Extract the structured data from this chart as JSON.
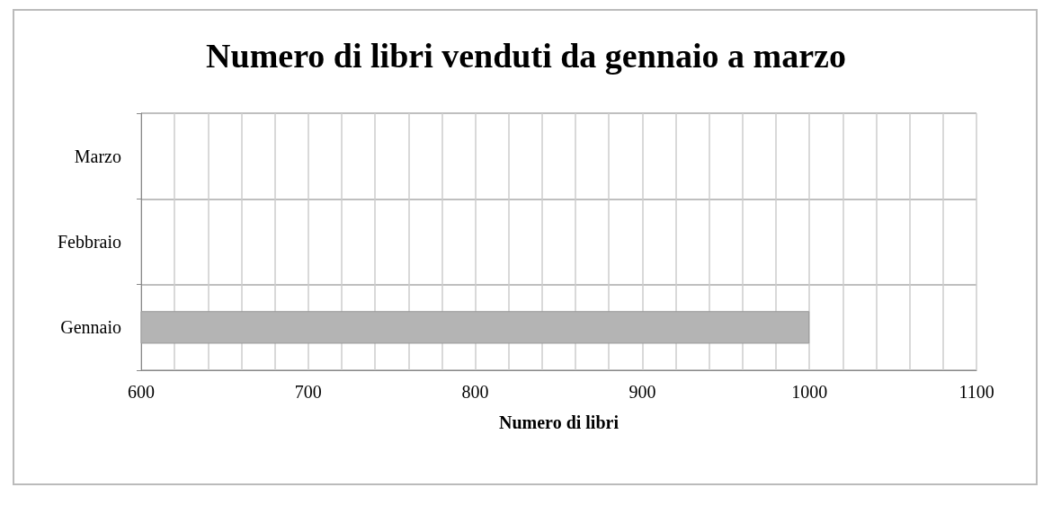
{
  "chart_data": {
    "type": "bar",
    "orientation": "horizontal",
    "title": "Numero di libri venduti da gennaio a marzo",
    "xlabel": "Numero di libri",
    "categories": [
      "Marzo",
      "Febbraio",
      "Gennaio"
    ],
    "series": [
      {
        "color": "#b4b4b4",
        "values": [
          null,
          null,
          1000
        ]
      }
    ],
    "xlim": [
      600,
      1100
    ],
    "xticks": [
      600,
      {
        "value": 620,
        "label": null
      },
      {
        "value": 640,
        "label": null
      },
      {
        "value": 660,
        "label": null
      },
      {
        "value": 680,
        "label": null
      },
      700,
      {
        "value": 720,
        "label": null
      },
      {
        "value": 740,
        "label": null
      },
      {
        "value": 760,
        "label": null
      },
      {
        "value": 780,
        "label": null
      },
      800,
      {
        "value": 820,
        "label": null
      },
      {
        "value": 840,
        "label": null
      },
      {
        "value": 860,
        "label": null
      },
      {
        "value": 880,
        "label": null
      },
      900,
      {
        "value": 920,
        "label": null
      },
      {
        "value": 940,
        "label": null
      },
      {
        "value": 960,
        "label": null
      },
      {
        "value": 980,
        "label": null
      },
      1000,
      {
        "value": 1020,
        "label": null
      },
      {
        "value": 1040,
        "label": null
      },
      {
        "value": 1060,
        "label": null
      },
      {
        "value": 1080,
        "label": null
      },
      1100
    ],
    "grid": true
  }
}
